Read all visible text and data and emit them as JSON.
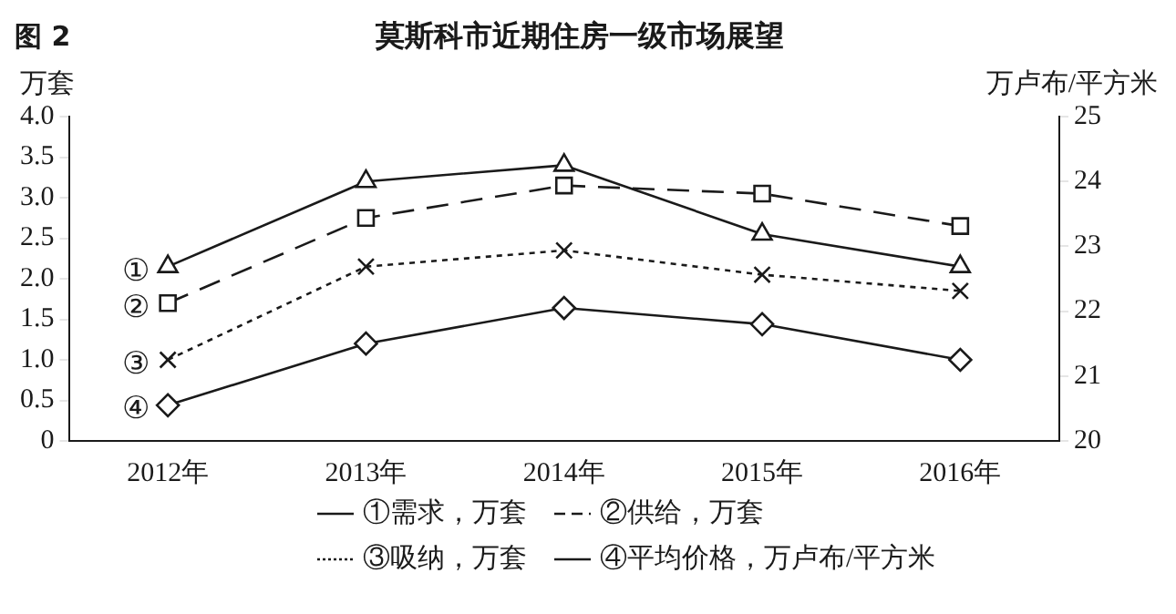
{
  "chart_data": {
    "type": "line",
    "title": "莫斯科市近期住房一级市场展望",
    "annotations": [
      "图 2",
      {
        "text": "①",
        "x": "2012年",
        "y": 2.15
      },
      {
        "text": "②",
        "x": "2012年",
        "y": 1.7
      },
      {
        "text": "③",
        "x": "2012年",
        "y": 1.0
      },
      {
        "text": "④",
        "x": "2012年",
        "y": 0.45
      }
    ],
    "ylabel": "万套",
    "y2label": "万卢布/平方米",
    "categories": [
      "2012年",
      "2013年",
      "2014年",
      "2015年",
      "2016年"
    ],
    "series": [
      {
        "name": "①需求，万套",
        "color": "#1a1a1a",
        "values": [
          2.15,
          3.2,
          3.4,
          2.55,
          2.15
        ],
        "line_style": "solid",
        "marker": "triangle"
      },
      {
        "name": "②供给，万套",
        "color": "#1a1a1a",
        "values": [
          1.7,
          2.75,
          3.15,
          3.05,
          2.65
        ],
        "line_style": "dashed",
        "marker": "square"
      },
      {
        "name": "③吸纳，万套",
        "color": "#1a1a1a",
        "values": [
          1.0,
          2.15,
          2.35,
          2.05,
          1.85
        ],
        "line_style": "dotted",
        "marker": "cross"
      },
      {
        "name": "④平均价格，万卢布/平方米",
        "color": "#1a1a1a",
        "values": [
          20.55,
          21.5,
          22.05,
          21.8,
          21.25
        ],
        "line_style": "solid",
        "marker": "diamond",
        "axis": "y2"
      }
    ],
    "ylim": [
      0,
      4
    ],
    "yticks": [
      0,
      0.5,
      {
        "value": 1,
        "label": "1.0"
      },
      1.5,
      {
        "value": 2,
        "label": "2.0"
      },
      2.5,
      {
        "value": 3,
        "label": "3.0"
      },
      3.5,
      {
        "value": 4,
        "label": "4.0"
      }
    ],
    "y2lim": [
      20,
      25
    ],
    "y2ticks": [
      20,
      21,
      22,
      23,
      24,
      25
    ],
    "grid": false,
    "legend": "bottom"
  }
}
